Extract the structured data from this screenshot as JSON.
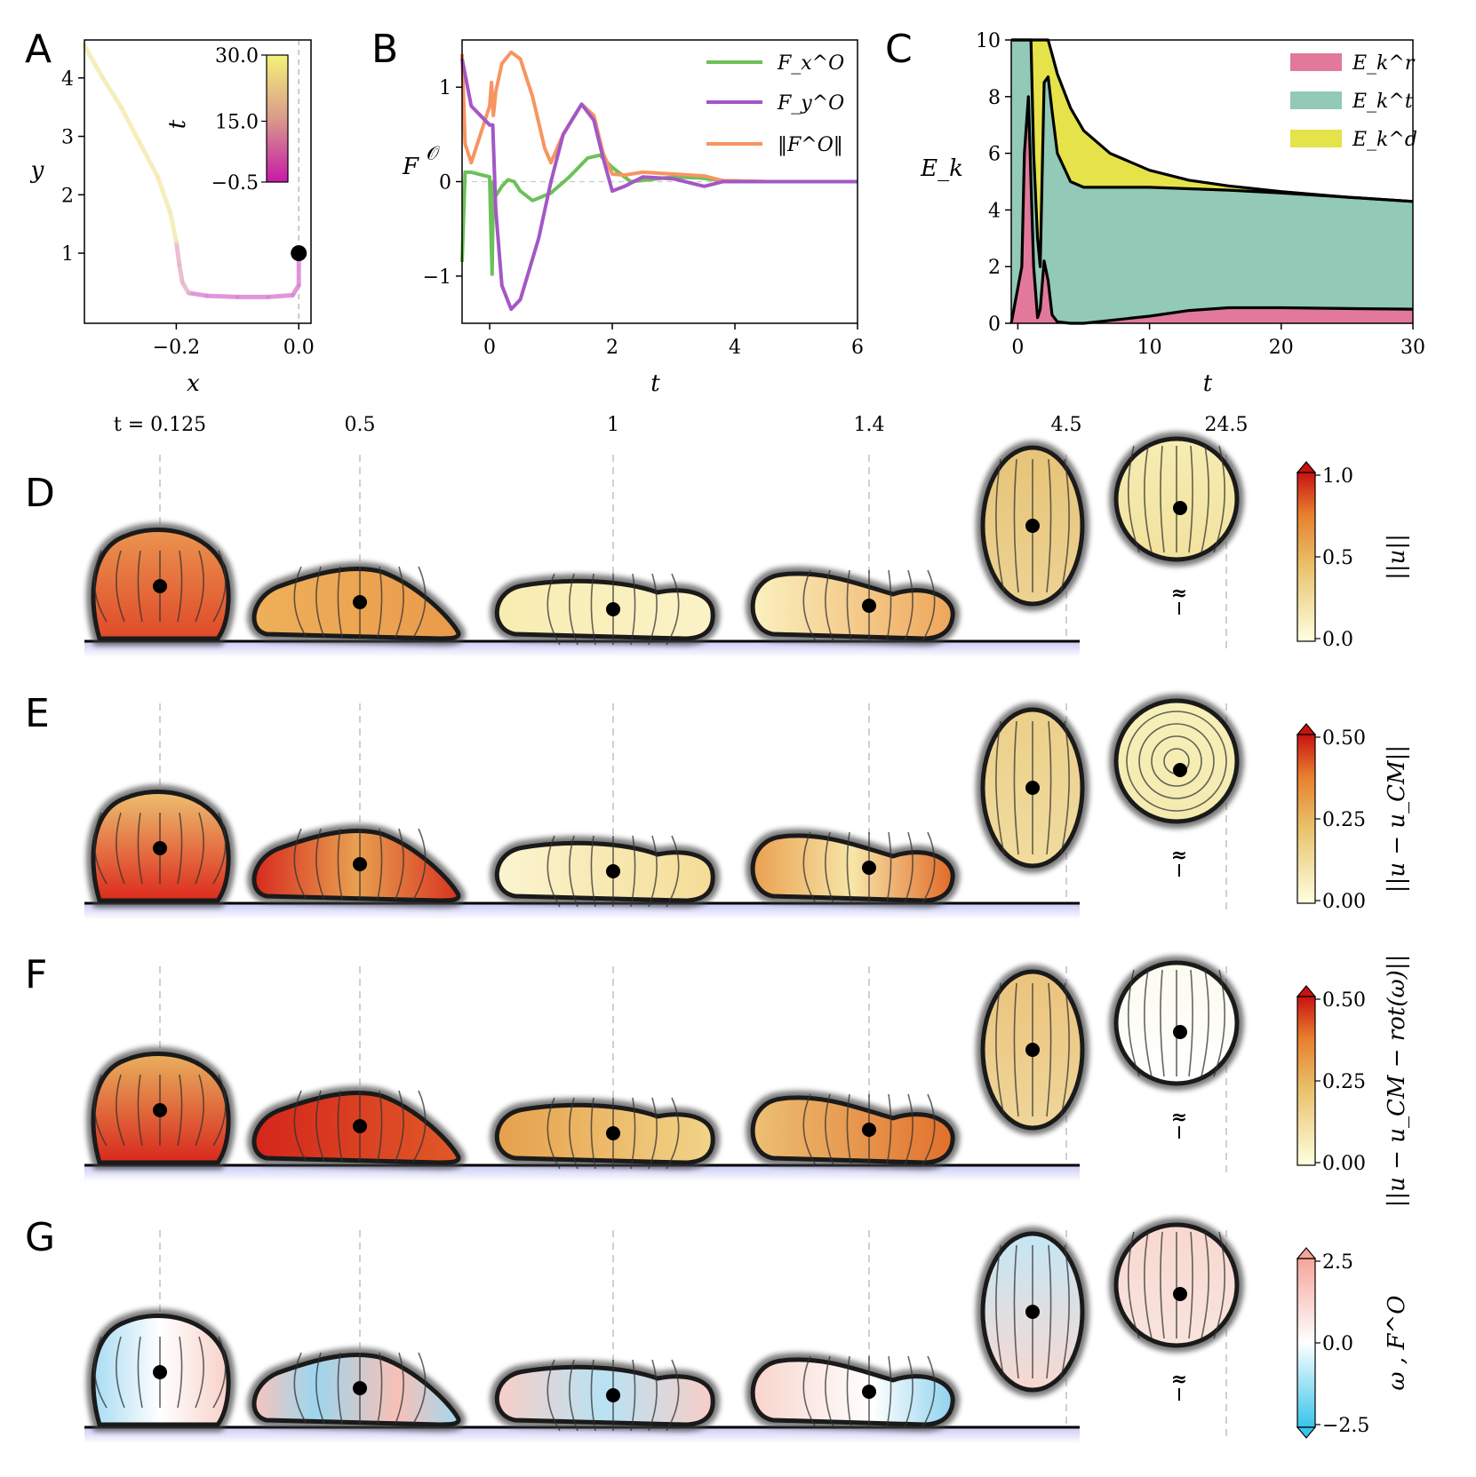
{
  "panels": {
    "A": "A",
    "B": "B",
    "C": "C",
    "D": "D",
    "E": "E",
    "F": "F",
    "G": "G"
  },
  "colors": {
    "fx": "#6cc158",
    "fy": "#a357c6",
    "fnorm": "#f79560",
    "er": "#e3799a",
    "et": "#92c9b7",
    "ed": "#e6e24a",
    "wall": "#c8c8f4"
  },
  "chart_data": [
    {
      "type": "line",
      "panel": "A",
      "xlabel": "x",
      "ylabel": "y",
      "xlim": [
        -0.35,
        0.02
      ],
      "ylim": [
        -0.2,
        4.65
      ],
      "xticks": [
        "−0.2",
        "0.0"
      ],
      "yticks": [
        "1",
        "2",
        "3",
        "4"
      ],
      "colorbar": {
        "label": "t",
        "ticks": [
          "30.0",
          "15.0",
          "−0.5"
        ],
        "range": [
          -0.5,
          30.0
        ]
      },
      "trajectory": {
        "x": [
          0.0,
          0.0,
          -0.01,
          -0.05,
          -0.1,
          -0.15,
          -0.18,
          -0.19,
          -0.195,
          -0.2,
          -0.21,
          -0.23,
          -0.26,
          -0.29,
          -0.32,
          -0.35
        ],
        "y": [
          1.0,
          0.45,
          0.28,
          0.25,
          0.25,
          0.27,
          0.32,
          0.5,
          0.8,
          1.2,
          1.7,
          2.3,
          2.9,
          3.5,
          4.0,
          4.55
        ]
      },
      "marker": {
        "x": 0.0,
        "y": 1.0
      }
    },
    {
      "type": "line",
      "panel": "B",
      "xlabel": "t",
      "ylabel": "F^O",
      "xlim": [
        -0.45,
        6
      ],
      "ylim": [
        -1.5,
        1.5
      ],
      "xticks": [
        "0",
        "2",
        "4",
        "6"
      ],
      "yticks": [
        "−1",
        "0",
        "1"
      ],
      "legend": [
        "F_x^O",
        "F_y^O",
        "‖F^O‖"
      ],
      "series": [
        {
          "name": "F_x^O",
          "color_key": "fx",
          "t": [
            -0.45,
            -0.4,
            -0.3,
            0.0,
            0.02,
            0.04,
            0.06,
            0.1,
            0.2,
            0.3,
            0.4,
            0.5,
            0.7,
            1.0,
            1.3,
            1.6,
            1.8,
            2.0,
            2.3,
            2.6,
            3.0,
            3.4,
            3.8,
            4.5,
            6.0
          ],
          "v": [
            -0.85,
            0.1,
            0.1,
            0.05,
            -0.5,
            -0.98,
            0.0,
            -0.15,
            -0.05,
            0.02,
            0.0,
            -0.1,
            -0.2,
            -0.12,
            0.05,
            0.25,
            0.28,
            0.15,
            0.0,
            0.02,
            0.05,
            0.04,
            0.01,
            0.0,
            0.0
          ]
        },
        {
          "name": "F_y^O",
          "color_key": "fy",
          "t": [
            -0.45,
            -0.3,
            0.0,
            0.05,
            0.1,
            0.2,
            0.35,
            0.5,
            0.8,
            1.0,
            1.2,
            1.5,
            1.7,
            1.85,
            2.0,
            2.2,
            2.5,
            3.0,
            3.5,
            3.8,
            4.5,
            6.0
          ],
          "v": [
            1.3,
            0.8,
            0.6,
            0.6,
            -0.3,
            -1.1,
            -1.35,
            -1.25,
            -0.6,
            0.0,
            0.5,
            0.82,
            0.65,
            0.25,
            -0.1,
            -0.05,
            0.05,
            0.03,
            -0.05,
            0.0,
            0.0,
            0.0
          ]
        },
        {
          "name": "‖F^O‖",
          "color_key": "fnorm",
          "t": [
            -0.45,
            -0.4,
            -0.3,
            0.0,
            0.03,
            0.06,
            0.1,
            0.2,
            0.35,
            0.5,
            0.7,
            0.9,
            1.0,
            1.2,
            1.5,
            1.7,
            1.85,
            2.0,
            2.2,
            2.5,
            3.0,
            3.5,
            3.8,
            4.5,
            6.0
          ],
          "v": [
            1.35,
            0.4,
            0.2,
            0.8,
            1.05,
            0.7,
            0.95,
            1.25,
            1.37,
            1.3,
            0.9,
            0.35,
            0.2,
            0.5,
            0.82,
            0.7,
            0.3,
            0.08,
            0.07,
            0.1,
            0.08,
            0.06,
            0.01,
            0.0,
            0.0
          ]
        }
      ]
    },
    {
      "type": "area",
      "panel": "C",
      "xlabel": "t",
      "ylabel": "E_k",
      "xlim": [
        -0.5,
        30
      ],
      "ylim": [
        0,
        10
      ],
      "xticks": [
        "0",
        "10",
        "20",
        "30"
      ],
      "yticks": [
        "0",
        "2",
        "4",
        "6",
        "8",
        "10"
      ],
      "legend": [
        "E_k^r",
        "E_k^t",
        "E_k^d"
      ],
      "t": [
        -0.5,
        0.3,
        0.5,
        0.8,
        1.0,
        1.2,
        1.5,
        1.7,
        2.0,
        2.3,
        2.6,
        3.0,
        4.0,
        5.0,
        7.0,
        10.0,
        13.0,
        16.0,
        20.0,
        25.0,
        30.0
      ],
      "series": [
        {
          "name": "E_k^r",
          "color_key": "er",
          "cum": [
            0,
            2,
            6,
            8,
            5,
            2,
            0.2,
            0.5,
            2.2,
            1.5,
            0.3,
            0.05,
            0.0,
            0.0,
            0.1,
            0.25,
            0.45,
            0.55,
            0.55,
            0.52,
            0.5
          ]
        },
        {
          "name": "E_k^t",
          "color_key": "et",
          "cum": [
            10,
            10,
            10,
            10,
            10,
            6,
            3,
            2,
            8.5,
            8.7,
            7.5,
            6.0,
            5.0,
            4.8,
            4.8,
            4.8,
            4.75,
            4.7,
            4.6,
            4.45,
            4.3
          ]
        },
        {
          "name": "E_k^d",
          "color_key": "ed",
          "cum": [
            10,
            10,
            10,
            10,
            10,
            10,
            10,
            10,
            10,
            10,
            9.5,
            8.8,
            7.6,
            6.8,
            6.0,
            5.4,
            5.05,
            4.85,
            4.65,
            4.45,
            4.3
          ]
        }
      ]
    }
  ],
  "time_labels": [
    "t = 0.125",
    "0.5",
    "1",
    "1.4",
    "4.5",
    "24.5"
  ],
  "rows": [
    {
      "panel": "D",
      "cbar_ticks": [
        "1.0",
        "0.5",
        "0.0"
      ],
      "cbar_label": "||u||",
      "scheme": "ylorrd"
    },
    {
      "panel": "E",
      "cbar_ticks": [
        "0.50",
        "0.25",
        "0.00"
      ],
      "cbar_label": "||u − u_CM||",
      "scheme": "ylorrd"
    },
    {
      "panel": "F",
      "cbar_ticks": [
        "0.50",
        "0.25",
        "0.00"
      ],
      "cbar_label": "||u − u_CM − rot(ω)||",
      "scheme": "ylorrd"
    },
    {
      "panel": "G",
      "cbar_ticks": [
        "2.5",
        "0.0",
        "−2.5"
      ],
      "cbar_label": "ω , F^O",
      "scheme": "rdbu"
    }
  ],
  "approx_symbol": "≈"
}
